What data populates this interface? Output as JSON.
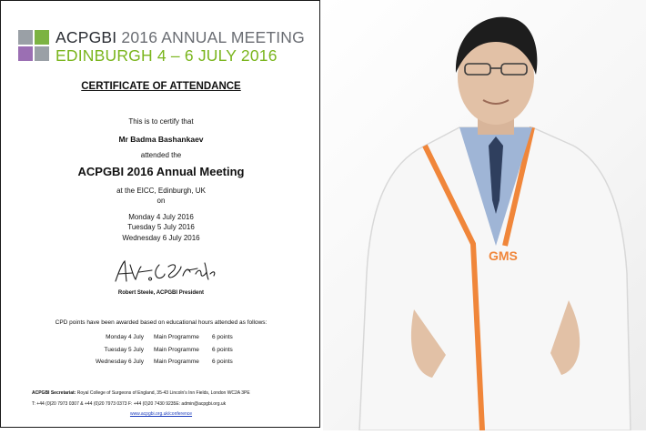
{
  "certificate": {
    "header_line1_bold": "ACPGBI",
    "header_line1_rest": " 2016 ANNUAL MEETING",
    "header_line2": "EDINBURGH 4 – 6 JULY 2016",
    "title": "CERTIFICATE OF ATTENDANCE",
    "certify_text": "This is to certify that",
    "attendee_name": "Mr Badma Bashankaev",
    "attended_text": "attended the",
    "meeting_name": "ACPGBI 2016 Annual Meeting",
    "venue": "at the EICC, Edinburgh, UK",
    "on_text": "on",
    "dates": [
      "Monday 4 July 2016",
      "Tuesday 5 July 2016",
      "Wednesday 6 July 2016"
    ],
    "signature_caption": "Robert Steele, ACPGBI President",
    "cpd_intro": "CPD points have been awarded based on educational hours attended as follows:",
    "cpd_rows": [
      {
        "day": "Monday 4 July",
        "programme": "Main Programme",
        "points": "6 points"
      },
      {
        "day": "Tuesday 5 July",
        "programme": "Main Programme",
        "points": "6 points"
      },
      {
        "day": "Wednesday 6 July",
        "programme": "Main Programme",
        "points": "6 points"
      }
    ],
    "secretariat_label": "ACPGBI Secretariat:",
    "secretariat_address": " Royal College of Surgeons of England, 35-43 Lincoln's Inn Fields, London WC2A 3PE",
    "contact_line": "T: +44 (0)20 7973 0307 & +44 (0)20 7973 0373 F: +44 (0)20 7430 9235E: admin@acpgbi.org.uk",
    "website": "www.acpgbi.org.uk/conference"
  },
  "colors": {
    "logo_green": "#7cb342",
    "logo_purple": "#9b6fb3",
    "logo_gray": "#9aa0a6",
    "edinburgh_green": "#7ab51d",
    "dates_purple": "#8e5fa8",
    "coat_orange": "#f0863a"
  }
}
